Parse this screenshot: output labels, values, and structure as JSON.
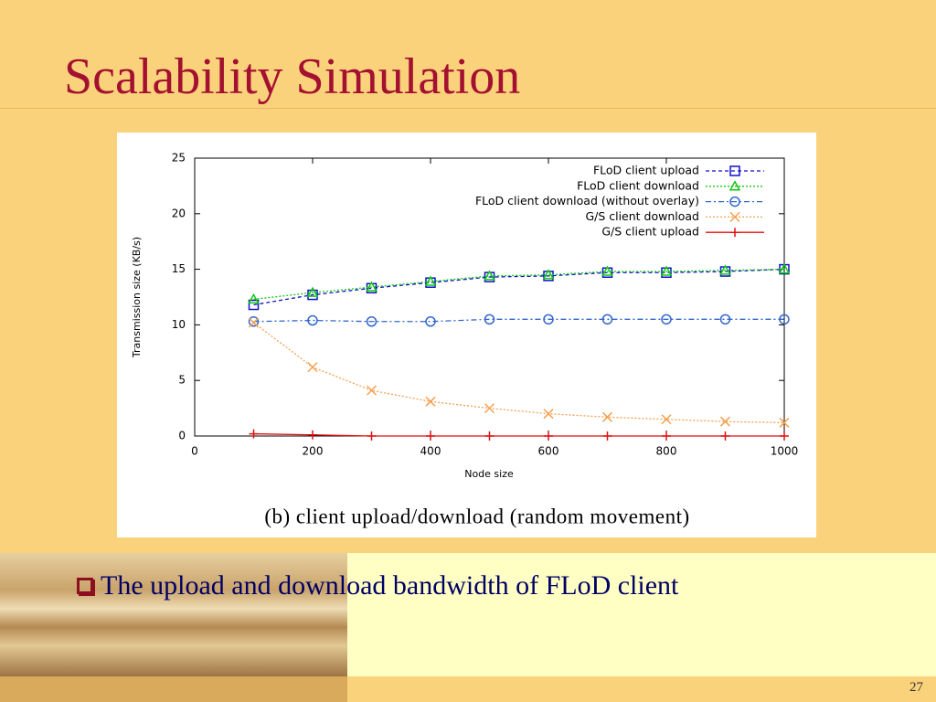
{
  "slide": {
    "title": "Scalability Simulation",
    "bullet": "The upload and download bandwidth of FLoD client",
    "page_number": "27"
  },
  "chart_data": {
    "type": "line",
    "caption": "(b) client upload/download (random movement)",
    "xlabel": "Node size",
    "ylabel": "Transmission size (KB/s)",
    "x": [
      100,
      200,
      300,
      400,
      500,
      600,
      700,
      800,
      900,
      1000
    ],
    "xlim": [
      0,
      1000
    ],
    "xticks": [
      0,
      200,
      400,
      600,
      800,
      1000
    ],
    "ylim": [
      0,
      25
    ],
    "yticks": [
      0,
      5,
      10,
      15,
      20,
      25
    ],
    "legend": "upper right",
    "series": [
      {
        "name": "FLoD client upload",
        "color": "#1010c8",
        "marker": "square",
        "dash": "4,3",
        "values": [
          11.8,
          12.7,
          13.3,
          13.8,
          14.3,
          14.4,
          14.7,
          14.7,
          14.8,
          15.0
        ]
      },
      {
        "name": "FLoD client download",
        "color": "#10c810",
        "marker": "triangle",
        "dash": "2,2",
        "values": [
          12.3,
          12.9,
          13.4,
          13.9,
          14.4,
          14.5,
          14.8,
          14.8,
          14.9,
          15.0
        ]
      },
      {
        "name": "FLoD client download (without overlay)",
        "color": "#3366cc",
        "marker": "circle",
        "dash": "6,3,2,3",
        "values": [
          10.3,
          10.4,
          10.3,
          10.3,
          10.5,
          10.5,
          10.5,
          10.5,
          10.5,
          10.5
        ]
      },
      {
        "name": "G/S client download",
        "color": "#f5a050",
        "marker": "x",
        "dash": "2,2",
        "values": [
          10.2,
          6.2,
          4.1,
          3.1,
          2.5,
          2.0,
          1.7,
          1.5,
          1.3,
          1.2
        ]
      },
      {
        "name": "G/S client upload",
        "color": "#e01010",
        "marker": "plus",
        "dash": "none",
        "values": [
          0.2,
          0.1,
          0,
          0,
          0,
          0,
          0,
          0,
          0,
          0
        ]
      }
    ]
  }
}
